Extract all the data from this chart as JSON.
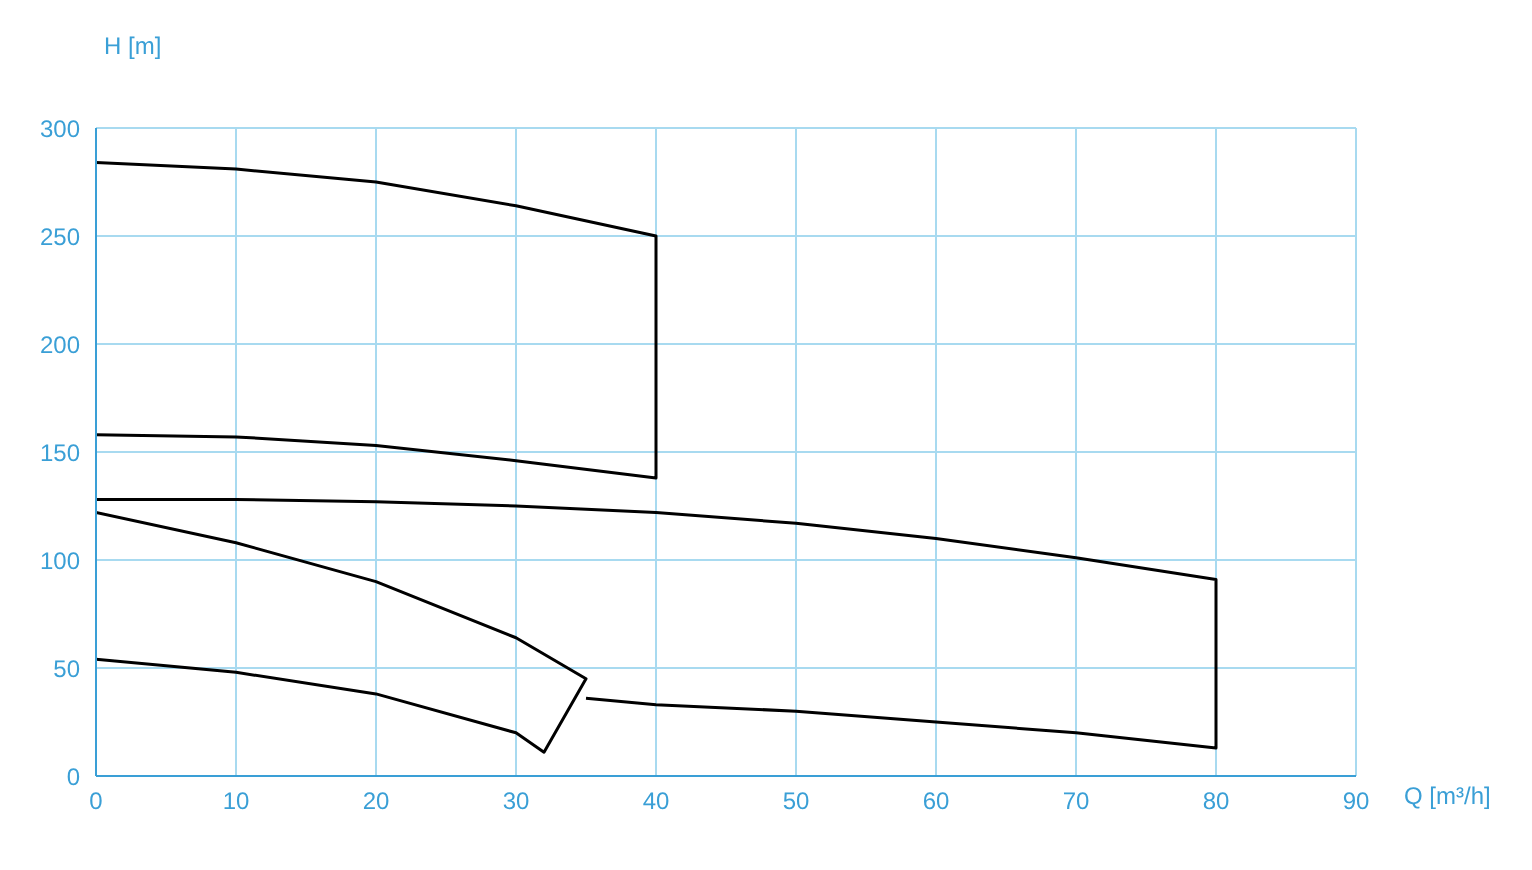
{
  "chart_data": {
    "type": "line",
    "xlabel": "Q [m³/h]",
    "ylabel": "H [m]",
    "xlim": [
      0,
      90
    ],
    "xticks": [
      0,
      10,
      20,
      30,
      40,
      50,
      60,
      70,
      80,
      90
    ],
    "ylim": [
      0,
      300
    ],
    "yticks": [
      0,
      50,
      100,
      150,
      200,
      250,
      300
    ],
    "grid": true,
    "marker": "none",
    "line_style": "solid",
    "series": [
      {
        "color": "#000000",
        "x": [
          0,
          10,
          20,
          30,
          40,
          40,
          30,
          20,
          10,
          0
        ],
        "values": [
          284,
          281,
          275,
          264,
          250,
          138,
          146,
          153,
          157,
          158
        ]
      },
      {
        "color": "#000000",
        "x": [
          0,
          10,
          20,
          30,
          40,
          50,
          60,
          70,
          80,
          80,
          70,
          60,
          50,
          40,
          35
        ],
        "values": [
          128,
          128,
          127,
          125,
          122,
          117,
          110,
          101,
          91,
          13,
          20,
          25,
          30,
          33,
          36
        ]
      },
      {
        "color": "#000000",
        "x": [
          0,
          10,
          20,
          30,
          35,
          32,
          30,
          20,
          10,
          0
        ],
        "values": [
          122,
          108,
          90,
          64,
          45,
          11,
          20,
          38,
          48,
          54
        ]
      }
    ]
  }
}
